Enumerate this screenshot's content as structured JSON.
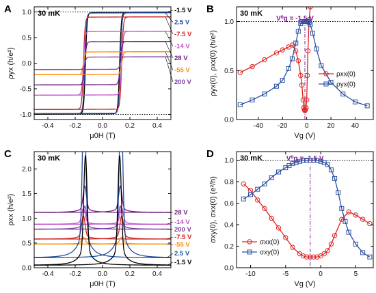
{
  "chart_data": [
    {
      "panel": "A",
      "type": "line",
      "annotation": "30 mK",
      "xlabel": "μ0H (T)",
      "ylabel": "ρyx (h/e²)",
      "xlim": [
        -0.5,
        0.5
      ],
      "ylim": [
        -1.1,
        1.1
      ],
      "xticks": [
        -0.4,
        -0.2,
        0.0,
        0.2,
        0.4
      ],
      "yticks": [
        -1.0,
        -0.5,
        0.0,
        0.5,
        1.0
      ],
      "reference_lines_y": [
        1.0,
        -1.0
      ],
      "series": [
        {
          "name": "-1.5 V",
          "color": "#000000",
          "sat": 0.99,
          "hc": 0.125
        },
        {
          "name": "2.5 V",
          "color": "#1f4e9e",
          "sat": 0.98,
          "hc": 0.13
        },
        {
          "name": "-7.5 V",
          "color": "#d42020",
          "sat": 0.9,
          "hc": 0.14
        },
        {
          "name": "-14 V",
          "color": "#c155c8",
          "sat": 0.62,
          "hc": 0.14
        },
        {
          "name": "28 V",
          "color": "#6a1a7a",
          "sat": 0.42,
          "hc": 0.13
        },
        {
          "name": "-55 V",
          "color": "#ff8c00",
          "sat": 0.22,
          "hc": 0.14
        },
        {
          "name": "200 V",
          "color": "#7b3fa0",
          "sat": 0.12,
          "hc": 0.13
        }
      ]
    },
    {
      "panel": "B",
      "type": "line",
      "annotation": "30 mK",
      "vg0_label": "V⁰g = -1.5 V",
      "vg0": -1.5,
      "xlabel": "Vg (V)",
      "ylabel": "ρyx(0), ρxx(0) (h/e²)",
      "xlim": [
        -58,
        55
      ],
      "ylim": [
        0,
        1.15
      ],
      "xticks": [
        -40,
        -20,
        0,
        20,
        40
      ],
      "yticks": [
        0.0,
        0.5,
        1.0
      ],
      "reference_lines_y": [
        1.0
      ],
      "series": [
        {
          "name": "ρxx(0)",
          "color": "#e02020",
          "marker": "circle",
          "x": [
            -55,
            -45,
            -35,
            -25,
            -20,
            -15,
            -12,
            -9,
            -7,
            -5,
            -4,
            -3,
            -2.5,
            -2,
            -1.5,
            -1,
            -0.5,
            0,
            0.5,
            1,
            2,
            3
          ],
          "y": [
            0.48,
            0.54,
            0.61,
            0.68,
            0.71,
            0.74,
            0.76,
            0.7,
            0.6,
            0.45,
            0.35,
            0.2,
            0.12,
            0.1,
            0.09,
            0.1,
            0.12,
            0.2,
            0.45,
            0.7,
            1.02,
            1.15
          ]
        },
        {
          "name": "ρyx(0)",
          "color": "#2a4fa0",
          "marker": "square",
          "x": [
            -55,
            -45,
            -35,
            -25,
            -20,
            -15,
            -12,
            -9,
            -7,
            -5,
            -4,
            -3,
            -2,
            -1,
            0,
            1,
            2,
            3,
            5,
            8,
            12,
            20,
            30,
            40,
            50
          ],
          "y": [
            0.15,
            0.2,
            0.26,
            0.34,
            0.4,
            0.52,
            0.62,
            0.78,
            0.9,
            0.98,
            1.0,
            1.0,
            1.0,
            1.0,
            1.0,
            1.0,
            0.99,
            0.97,
            0.88,
            0.72,
            0.55,
            0.38,
            0.26,
            0.18,
            0.14
          ]
        }
      ]
    },
    {
      "panel": "C",
      "type": "line",
      "annotation": "30 mK",
      "xlabel": "μ0H (T)",
      "ylabel": "ρxx (h/e²)",
      "xlim": [
        -0.5,
        0.5
      ],
      "ylim": [
        0,
        2.35
      ],
      "xticks": [
        -0.4,
        -0.2,
        0.0,
        0.2,
        0.4
      ],
      "yticks": [
        0.0,
        0.5,
        1.0,
        1.5,
        2.0
      ],
      "series": [
        {
          "name": "28 V",
          "color": "#6a1a7a",
          "base": 1.12,
          "peak": 1.65,
          "hp": 0.13
        },
        {
          "name": "-14 V",
          "color": "#c155c8",
          "base": 0.88,
          "peak": 1.2,
          "hp": 0.14
        },
        {
          "name": "200 V",
          "color": "#7b3fa0",
          "base": 0.78,
          "peak": 1.25,
          "hp": 0.13
        },
        {
          "name": "-7.5 V",
          "color": "#d42020",
          "base": 0.58,
          "peak": 1.05,
          "hp": 0.14
        },
        {
          "name": "-55 V",
          "color": "#ff8c00",
          "base": 0.48,
          "peak": 0.62,
          "hp": 0.14
        },
        {
          "name": "2.5 V",
          "color": "#1f4e9e",
          "base": 0.2,
          "peak": 3.5,
          "hp": 0.135
        },
        {
          "name": "-1.5 V",
          "color": "#000000",
          "base": 0.05,
          "peak": 2.28,
          "hp": 0.125
        }
      ]
    },
    {
      "panel": "D",
      "type": "line",
      "annotation": "30 mK",
      "vg0_label": "V⁰g = -1.5 V",
      "vg0": -1.5,
      "xlabel": "Vg (V)",
      "ylabel": "σxy(0), σxx(0) (e²/h)",
      "xlim": [
        -12,
        7.5
      ],
      "ylim": [
        0,
        1.08
      ],
      "xticks": [
        -10,
        -5,
        0,
        5
      ],
      "yticks": [
        0.0,
        0.2,
        0.4,
        0.6,
        0.8,
        1.0
      ],
      "reference_lines_y": [
        1.0
      ],
      "series": [
        {
          "name": "σxx(0)",
          "color": "#e02020",
          "marker": "circle",
          "x": [
            -11,
            -10,
            -9,
            -8,
            -7,
            -6,
            -5,
            -4,
            -3,
            -2.5,
            -2,
            -1.5,
            -1,
            -0.5,
            0,
            0.5,
            1,
            1.5,
            2,
            3,
            4,
            5,
            6,
            7
          ],
          "y": [
            0.78,
            0.72,
            0.63,
            0.55,
            0.46,
            0.37,
            0.28,
            0.19,
            0.13,
            0.11,
            0.1,
            0.1,
            0.1,
            0.1,
            0.11,
            0.13,
            0.16,
            0.22,
            0.3,
            0.45,
            0.52,
            0.49,
            0.45,
            0.41
          ]
        },
        {
          "name": "σxy(0)",
          "color": "#2a4fa0",
          "marker": "square",
          "x": [
            -11,
            -10,
            -9,
            -8,
            -7,
            -6,
            -5,
            -4.5,
            -4,
            -3.5,
            -3,
            -2.5,
            -2,
            -1.5,
            -1,
            -0.5,
            0,
            0.5,
            1,
            1.5,
            2,
            2.5,
            3,
            3.5,
            4,
            5,
            6,
            7
          ],
          "y": [
            0.64,
            0.68,
            0.73,
            0.78,
            0.84,
            0.89,
            0.93,
            0.95,
            0.97,
            0.98,
            0.99,
            1.0,
            1.0,
            1.0,
            1.0,
            1.0,
            0.99,
            0.98,
            0.96,
            0.91,
            0.83,
            0.7,
            0.55,
            0.43,
            0.33,
            0.22,
            0.14,
            0.1
          ]
        }
      ]
    }
  ]
}
